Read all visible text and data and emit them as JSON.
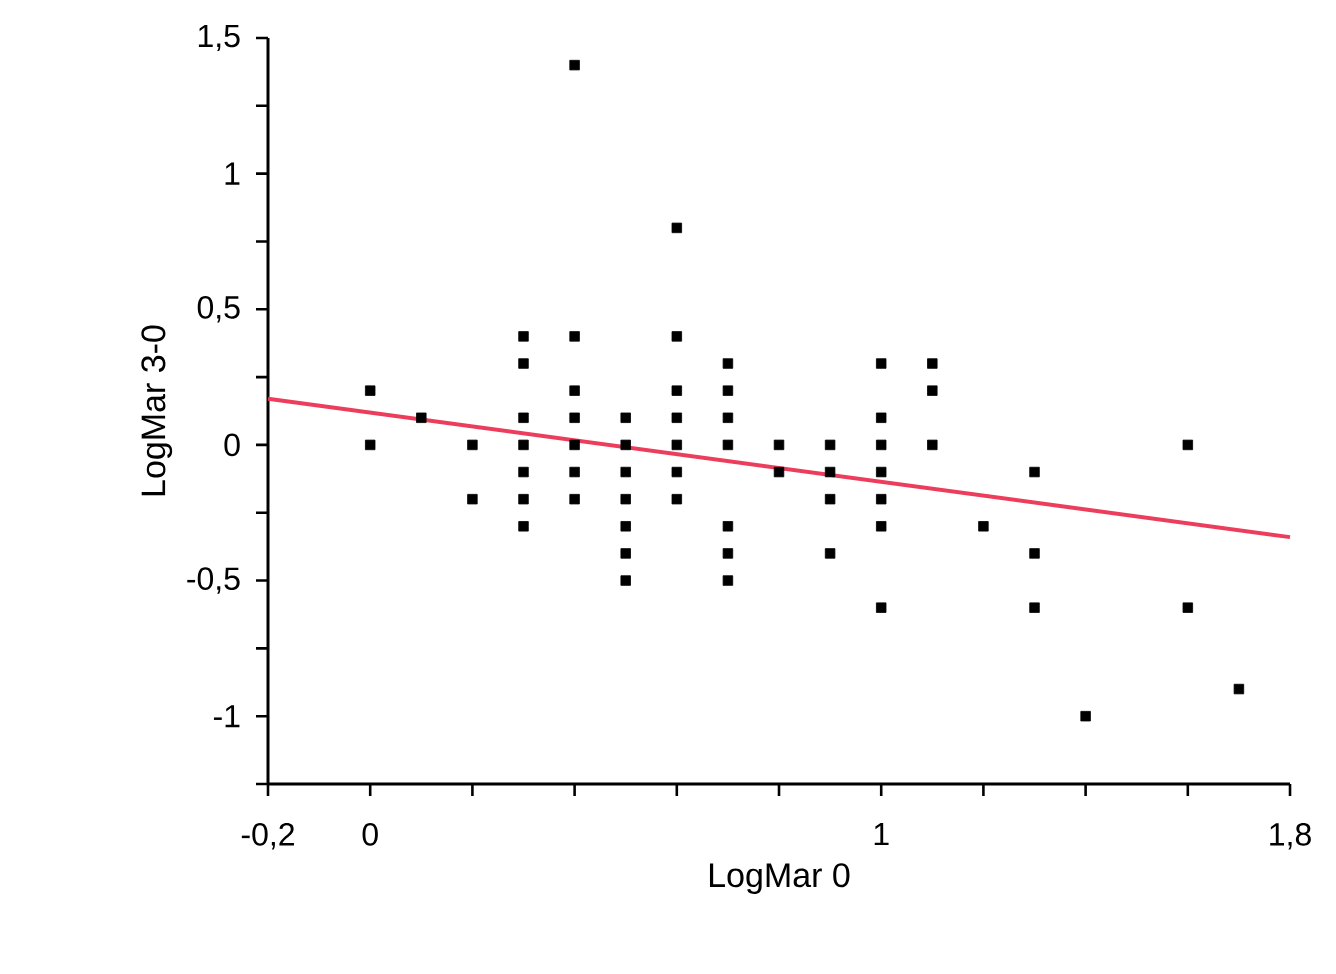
{
  "chart_data": {
    "type": "scatter",
    "xlabel": "LogMar  0",
    "ylabel": "LogMar  3-0",
    "grid": false,
    "legend": false,
    "xlim": [
      -0.2,
      1.8
    ],
    "ylim": [
      -1.25,
      1.5
    ],
    "xticks": [
      {
        "value": -0.2,
        "label": "-0,2"
      },
      0,
      {
        "value": 0.2,
        "label": null
      },
      {
        "value": 0.4,
        "label": null
      },
      {
        "value": 0.6,
        "label": null
      },
      {
        "value": 0.8,
        "label": null
      },
      1,
      {
        "value": 1.2,
        "label": null
      },
      {
        "value": 1.4,
        "label": null
      },
      {
        "value": 1.6,
        "label": null
      },
      {
        "value": 1.8,
        "label": "1,8"
      }
    ],
    "yticks": [
      {
        "value": -1.25,
        "label": null
      },
      -1,
      {
        "value": -0.75,
        "label": null
      },
      {
        "value": -0.5,
        "label": "-0,5"
      },
      {
        "value": -0.25,
        "label": null
      },
      0,
      {
        "value": 0.25,
        "label": null
      },
      {
        "value": 0.5,
        "label": "0,5"
      },
      {
        "value": 0.75,
        "label": null
      },
      1,
      {
        "value": 1.25,
        "label": null
      },
      {
        "value": 1.5,
        "label": "1,5"
      }
    ],
    "series": [
      {
        "color": "#000000",
        "marker": "square",
        "x": [
          0,
          0,
          0.1,
          0.2,
          0.2,
          0.3,
          0.3,
          0.3,
          0.3,
          0.3,
          0.3,
          0.3,
          0.4,
          0.4,
          0.4,
          0.4,
          0.4,
          0.4,
          0.4,
          0.5,
          0.5,
          0.5,
          0.5,
          0.5,
          0.5,
          0.5,
          0.6,
          0.6,
          0.6,
          0.6,
          0.6,
          0.6,
          0.6,
          0.7,
          0.7,
          0.7,
          0.7,
          0.7,
          0.7,
          0.7,
          0.8,
          0.8,
          0.9,
          0.9,
          0.9,
          0.9,
          1.0,
          1.0,
          1.0,
          1.0,
          1.0,
          1.0,
          1.0,
          1.1,
          1.1,
          1.1,
          1.2,
          1.3,
          1.3,
          1.3,
          1.4,
          1.6,
          1.6,
          1.7
        ],
        "values": [
          0.2,
          0,
          0.1,
          0,
          -0.2,
          0.4,
          0.3,
          0.1,
          0,
          -0.1,
          -0.2,
          -0.3,
          1.4,
          0.4,
          0.2,
          0.1,
          0,
          -0.1,
          -0.2,
          0.1,
          0,
          -0.1,
          -0.2,
          -0.3,
          -0.4,
          -0.5,
          0.8,
          0.4,
          0.2,
          0.1,
          0,
          -0.1,
          -0.2,
          0.3,
          0.2,
          0.1,
          0,
          -0.3,
          -0.4,
          -0.5,
          0,
          -0.1,
          0,
          -0.1,
          -0.2,
          -0.4,
          0.3,
          0.1,
          0,
          -0.1,
          -0.2,
          -0.3,
          -0.6,
          0.3,
          0.2,
          0,
          -0.3,
          -0.1,
          -0.4,
          -0.6,
          -1.0,
          0,
          -0.6,
          -0.9
        ]
      },
      {
        "type": "line",
        "color": "#ec3d5c",
        "marker": "none",
        "x": [
          -0.2,
          1.8
        ],
        "values": [
          0.17,
          -0.34
        ]
      }
    ]
  }
}
